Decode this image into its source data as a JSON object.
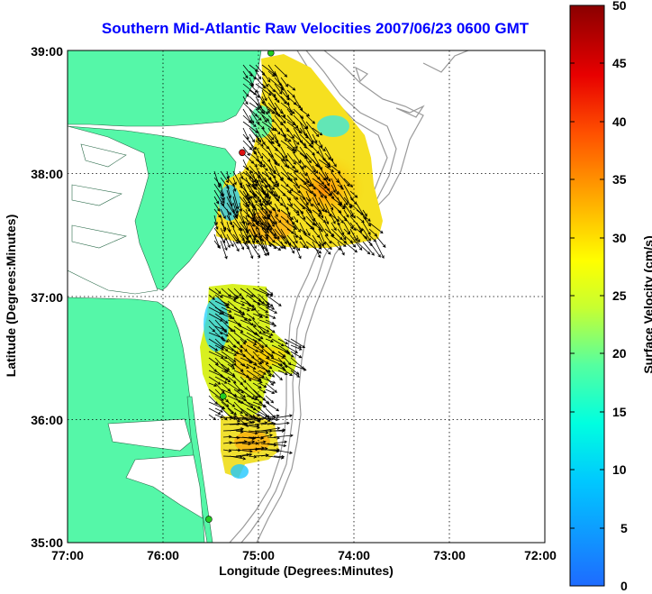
{
  "title": "Southern Mid-Atlantic Raw Velocities 2007/06/23 0600 GMT",
  "x_axis": {
    "label": "Longitude (Degrees:Minutes)",
    "ticks": [
      "77:00",
      "76:00",
      "75:00",
      "74:00",
      "73:00",
      "72:00"
    ]
  },
  "y_axis": {
    "label": "Latitude (Degrees:Minutes)",
    "ticks": [
      "39:00",
      "38:00",
      "37:00",
      "36:00",
      "35:00"
    ]
  },
  "colorbar": {
    "label": "Surface Velocity (cm/s)",
    "ticks": [
      "50",
      "45",
      "40",
      "35",
      "30",
      "25",
      "20",
      "15",
      "10",
      "5",
      "0"
    ],
    "min": 0,
    "max": 50
  },
  "colors": {
    "land": "#55f7a8",
    "title": "#0000ff",
    "grid": "#000000",
    "bathymetry": "#999999",
    "station_active": "#22cc22",
    "station_alert": "#dd1111"
  },
  "stations": [
    {
      "lon": -74.87,
      "lat": 38.98,
      "status": "active"
    },
    {
      "lon": -75.17,
      "lat": 38.17,
      "status": "alert"
    },
    {
      "lon": -75.37,
      "lat": 36.19,
      "status": "active"
    },
    {
      "lon": -75.52,
      "lat": 35.19,
      "status": "active"
    }
  ]
}
